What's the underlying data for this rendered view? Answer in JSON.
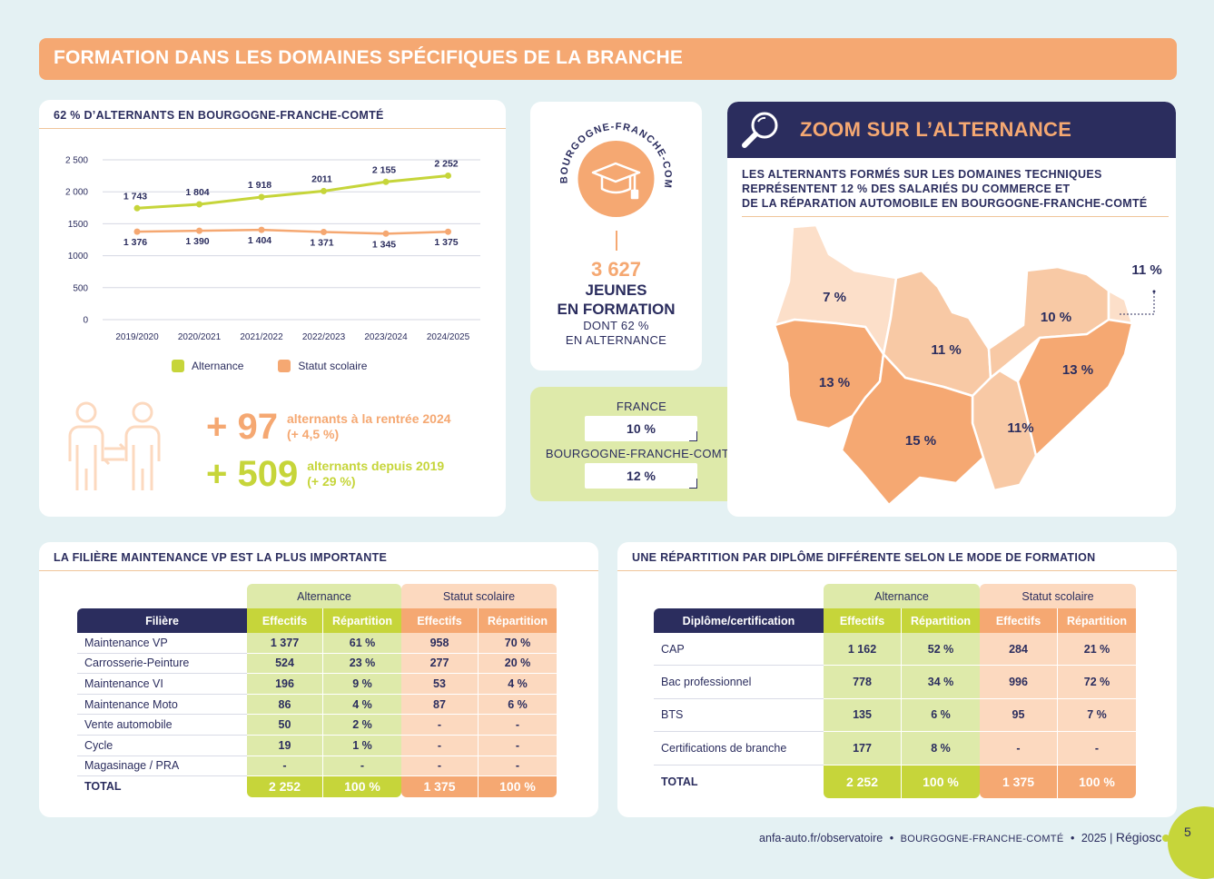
{
  "banner": {
    "title": "FORMATION DANS LES DOMAINES SPÉCIFIQUES DE LA BRANCHE"
  },
  "chart_card": {
    "title": "62 % D’ALTERNANTS EN BOURGOGNE-FRANCHE-COMTÉ",
    "kpi1": {
      "value": "+ 97",
      "line1": "alternants à la rentrée 2024",
      "line2": "(+ 4,5 %)"
    },
    "kpi2": {
      "value": "+ 509",
      "line1": "alternants depuis 2019",
      "line2": "(+ 29 %)"
    }
  },
  "chart_data": {
    "type": "line",
    "categories": [
      "2019/2020",
      "2020/2021",
      "2021/2022",
      "2022/2023",
      "2023/2024",
      "2024/2025"
    ],
    "ylim": [
      0,
      2500
    ],
    "yticks": [
      "0",
      "500",
      "1000",
      "1500",
      "2 000",
      "2 500"
    ],
    "series": [
      {
        "name": "Alternance",
        "values": [
          1743,
          1804,
          1918,
          2011,
          2155,
          2252
        ],
        "labels": [
          "1 743",
          "1 804",
          "1 918",
          "2011",
          "2 155",
          "2 252"
        ],
        "color": "#c6d53a"
      },
      {
        "name": "Statut scolaire",
        "values": [
          1376,
          1390,
          1404,
          1371,
          1345,
          1375
        ],
        "labels": [
          "1 376",
          "1 390",
          "1 404",
          "1 371",
          "1 345",
          "1 375"
        ],
        "color": "#f5a872"
      }
    ],
    "legend": "bottom"
  },
  "youth": {
    "arc_text": "EN BOURGOGNE-FRANCHE-COMTÉ",
    "number": "3 627",
    "line1": "JEUNES",
    "line2": "EN FORMATION",
    "line3": "DONT 62 %",
    "line4": "EN ALTERNANCE"
  },
  "compare": {
    "france_label": "FRANCE",
    "france_value": "10 %",
    "region_label": "BOURGOGNE-FRANCHE-COMTÉ",
    "region_value": "12 %"
  },
  "zoom": {
    "title": "ZOOM SUR L’ALTERNANCE",
    "desc1": "LES ALTERNANTS FORMÉS SUR LES DOMAINES TECHNIQUES",
    "desc2": "REPRÉSENTENT 12 % DES SALARIÉS DU COMMERCE ET",
    "desc3": "DE LA RÉPARATION AUTOMOBILE EN BOURGOGNE-FRANCHE-COMTÉ",
    "departments": [
      "7 %",
      "11 %",
      "10 %",
      "11 %",
      "13 %",
      "13 %",
      "15 %",
      "11%"
    ]
  },
  "table1": {
    "title": "LA FILIÈRE MAINTENANCE VP EST LA PLUS IMPORTANTE",
    "group_a": "Alternance",
    "group_s": "Statut scolaire",
    "col0": "Filière",
    "cols": [
      "Effectifs",
      "Répartition",
      "Effectifs",
      "Répartition"
    ],
    "rows": [
      [
        "Maintenance VP",
        "1 377",
        "61 %",
        "958",
        "70 %"
      ],
      [
        "Carrosserie-Peinture",
        "524",
        "23 %",
        "277",
        "20 %"
      ],
      [
        "Maintenance VI",
        "196",
        "9 %",
        "53",
        "4 %"
      ],
      [
        "Maintenance Moto",
        "86",
        "4 %",
        "87",
        "6 %"
      ],
      [
        "Vente automobile",
        "50",
        "2 %",
        "-",
        "-"
      ],
      [
        "Cycle",
        "19",
        "1 %",
        "-",
        "-"
      ],
      [
        "Magasinage / PRA",
        "-",
        "-",
        "-",
        "-"
      ]
    ],
    "total": [
      "TOTAL",
      "2 252",
      "100 %",
      "1 375",
      "100 %"
    ]
  },
  "table2": {
    "title": "UNE RÉPARTITION PAR DIPLÔME DIFFÉRENTE SELON LE MODE DE FORMATION",
    "group_a": "Alternance",
    "group_s": "Statut scolaire",
    "col0": "Diplôme/certification",
    "cols": [
      "Effectifs",
      "Répartition",
      "Effectifs",
      "Répartition"
    ],
    "rows": [
      [
        "CAP",
        "1 162",
        "52 %",
        "284",
        "21 %"
      ],
      [
        "Bac professionnel",
        "778",
        "34 %",
        "996",
        "72 %"
      ],
      [
        "BTS",
        "135",
        "6 %",
        "95",
        "7 %"
      ],
      [
        "Certifications de branche",
        "177",
        "8 %",
        "-",
        "-"
      ]
    ],
    "total": [
      "TOTAL",
      "2 252",
      "100 %",
      "1 375",
      "100 %"
    ]
  },
  "footer": {
    "site": "anfa-auto.fr/observatoire",
    "sep": "•",
    "region": "BOURGOGNE-FRANCHE-COMTÉ",
    "year": "2025 |",
    "brand_a": "Régios",
    "brand_b": "c",
    "brand_c": "pe",
    "page": "5"
  }
}
